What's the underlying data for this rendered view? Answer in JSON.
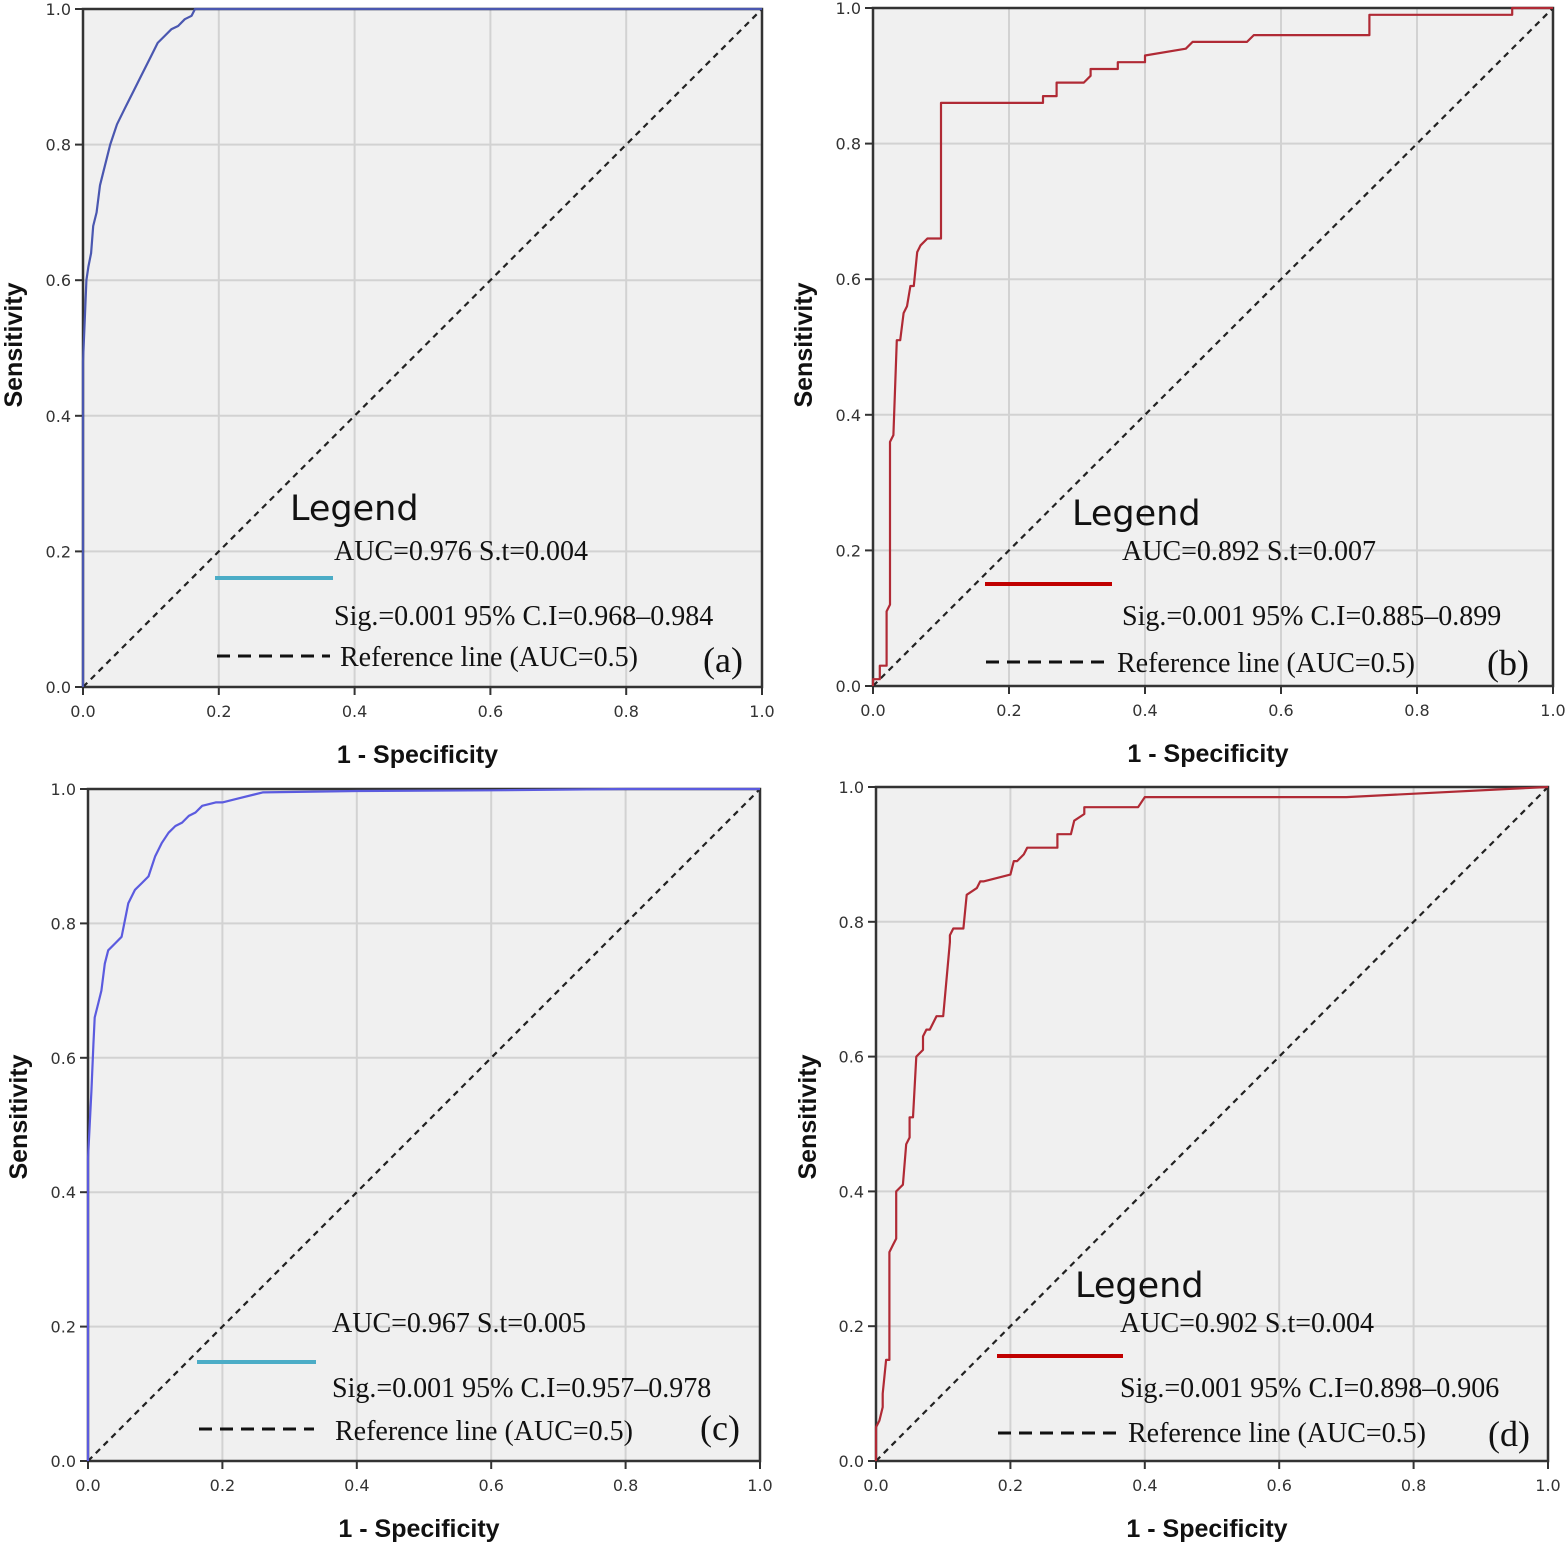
{
  "chart_data": [
    {
      "type": "line",
      "panel": "(a)",
      "xlabel": "1 - Specificity",
      "ylabel": "Sensitivity",
      "xlim": [
        0,
        1
      ],
      "ylim": [
        0,
        1
      ],
      "xticks": [
        "0.0",
        "0.2",
        "0.4",
        "0.6",
        "0.8",
        "1.0"
      ],
      "yticks": [
        "0.0",
        "0.2",
        "0.4",
        "0.6",
        "0.8",
        "1.0"
      ],
      "grid": true,
      "legend_title": "Legend",
      "legend_line_color": "#4bacc6",
      "curve_color": "#4a57b0",
      "stats_line1": "AUC=0.976 S.t=0.004",
      "stats_line2": "Sig.=0.001 95% C.I=0.968–0.984",
      "reference_label": "Reference line (AUC=0.5)",
      "series": [
        {
          "name": "ROC",
          "x": [
            0.0,
            0.0,
            0.003,
            0.005,
            0.008,
            0.012,
            0.015,
            0.02,
            0.025,
            0.03,
            0.035,
            0.04,
            0.05,
            0.06,
            0.065,
            0.075,
            0.085,
            0.095,
            0.1,
            0.11,
            0.12,
            0.13,
            0.14,
            0.15,
            0.16,
            0.165,
            0.2,
            1.0
          ],
          "y": [
            0.0,
            0.48,
            0.55,
            0.6,
            0.62,
            0.64,
            0.68,
            0.7,
            0.74,
            0.76,
            0.78,
            0.8,
            0.83,
            0.85,
            0.86,
            0.88,
            0.9,
            0.92,
            0.93,
            0.95,
            0.96,
            0.97,
            0.975,
            0.985,
            0.99,
            1.0,
            1.0,
            1.0
          ]
        },
        {
          "name": "Reference line",
          "x": [
            0,
            1
          ],
          "y": [
            0,
            1
          ]
        }
      ]
    },
    {
      "type": "line",
      "panel": "(b)",
      "xlabel": "1 - Specificity",
      "ylabel": "Sensitivity",
      "xlim": [
        0,
        1
      ],
      "ylim": [
        0,
        1
      ],
      "xticks": [
        "0.0",
        "0.2",
        "0.4",
        "0.6",
        "0.8",
        "1.0"
      ],
      "yticks": [
        "0.0",
        "0.2",
        "0.4",
        "0.6",
        "0.8",
        "1.0"
      ],
      "grid": true,
      "legend_title": "Legend",
      "legend_line_color": "#c00000",
      "curve_color": "#b02a35",
      "stats_line1": "AUC=0.892 S.t=0.007",
      "stats_line2": "Sig.=0.001 95% C.I=0.885–0.899",
      "reference_label": "Reference line (AUC=0.5)",
      "series": [
        {
          "name": "ROC",
          "x": [
            0.0,
            0.0,
            0.01,
            0.01,
            0.02,
            0.02,
            0.025,
            0.025,
            0.03,
            0.035,
            0.04,
            0.045,
            0.05,
            0.055,
            0.06,
            0.065,
            0.07,
            0.08,
            0.1,
            0.1,
            0.25,
            0.25,
            0.27,
            0.27,
            0.31,
            0.32,
            0.32,
            0.36,
            0.36,
            0.4,
            0.4,
            0.46,
            0.47,
            0.55,
            0.56,
            0.73,
            0.73,
            0.94,
            0.94,
            1.0
          ],
          "y": [
            0.0,
            0.01,
            0.01,
            0.03,
            0.03,
            0.11,
            0.12,
            0.36,
            0.37,
            0.51,
            0.51,
            0.55,
            0.56,
            0.59,
            0.59,
            0.64,
            0.65,
            0.66,
            0.66,
            0.86,
            0.86,
            0.87,
            0.87,
            0.89,
            0.89,
            0.9,
            0.91,
            0.91,
            0.92,
            0.92,
            0.93,
            0.94,
            0.95,
            0.95,
            0.96,
            0.96,
            0.99,
            0.99,
            1.0,
            1.0
          ]
        },
        {
          "name": "Reference line",
          "x": [
            0,
            1
          ],
          "y": [
            0,
            1
          ]
        }
      ]
    },
    {
      "type": "line",
      "panel": "(c)",
      "xlabel": "1 - Specificity",
      "ylabel": "Sensitivity",
      "xlim": [
        0,
        1
      ],
      "ylim": [
        0,
        1
      ],
      "xticks": [
        "0.0",
        "0.2",
        "0.4",
        "0.6",
        "0.8",
        "1.0"
      ],
      "yticks": [
        "0.0",
        "0.2",
        "0.4",
        "0.6",
        "0.8",
        "1.0"
      ],
      "grid": true,
      "legend_title": "",
      "legend_line_color": "#4bacc6",
      "curve_color": "#5b5bdf",
      "stats_line1": "AUC=0.967 S.t=0.005",
      "stats_line2": "Sig.=0.001 95% C.I=0.957–0.978",
      "reference_label": "Reference line (AUC=0.5)",
      "series": [
        {
          "name": "ROC",
          "x": [
            0.0,
            0.0,
            0.005,
            0.008,
            0.01,
            0.015,
            0.02,
            0.025,
            0.03,
            0.04,
            0.05,
            0.06,
            0.07,
            0.08,
            0.09,
            0.1,
            0.11,
            0.12,
            0.13,
            0.14,
            0.15,
            0.16,
            0.17,
            0.19,
            0.2,
            0.22,
            0.26,
            0.4,
            0.6,
            0.8,
            1.0
          ],
          "y": [
            0.0,
            0.45,
            0.55,
            0.62,
            0.66,
            0.68,
            0.7,
            0.74,
            0.76,
            0.77,
            0.78,
            0.83,
            0.85,
            0.86,
            0.87,
            0.9,
            0.92,
            0.935,
            0.945,
            0.95,
            0.96,
            0.965,
            0.975,
            0.98,
            0.98,
            0.985,
            0.995,
            0.997,
            0.998,
            1.0,
            1.0
          ]
        },
        {
          "name": "Reference line",
          "x": [
            0,
            1
          ],
          "y": [
            0,
            1
          ]
        }
      ]
    },
    {
      "type": "line",
      "panel": "(d)",
      "xlabel": "1 - Specificity",
      "ylabel": "Sensitivity",
      "xlim": [
        0,
        1
      ],
      "ylim": [
        0,
        1
      ],
      "xticks": [
        "0.0",
        "0.2",
        "0.4",
        "0.6",
        "0.8",
        "1.0"
      ],
      "yticks": [
        "0.0",
        "0.2",
        "0.4",
        "0.6",
        "0.8",
        "1.0"
      ],
      "grid": true,
      "legend_title": "Legend",
      "legend_line_color": "#c00000",
      "curve_color": "#b02a35",
      "stats_line1": "AUC=0.902 S.t=0.004",
      "stats_line2": "Sig.=0.001 95% C.I=0.898–0.906",
      "reference_label": "Reference line (AUC=0.5)",
      "series": [
        {
          "name": "ROC",
          "x": [
            0.0,
            0.0,
            0.005,
            0.01,
            0.01,
            0.015,
            0.02,
            0.02,
            0.025,
            0.03,
            0.03,
            0.04,
            0.045,
            0.05,
            0.05,
            0.055,
            0.06,
            0.07,
            0.07,
            0.075,
            0.08,
            0.09,
            0.1,
            0.11,
            0.11,
            0.115,
            0.13,
            0.135,
            0.135,
            0.15,
            0.155,
            0.16,
            0.2,
            0.205,
            0.21,
            0.22,
            0.225,
            0.27,
            0.27,
            0.29,
            0.295,
            0.31,
            0.31,
            0.39,
            0.4,
            0.7,
            1.0
          ],
          "y": [
            0.0,
            0.05,
            0.06,
            0.08,
            0.1,
            0.15,
            0.15,
            0.31,
            0.32,
            0.33,
            0.4,
            0.41,
            0.47,
            0.48,
            0.51,
            0.51,
            0.6,
            0.61,
            0.63,
            0.64,
            0.64,
            0.66,
            0.66,
            0.77,
            0.78,
            0.79,
            0.79,
            0.84,
            0.84,
            0.85,
            0.86,
            0.86,
            0.87,
            0.89,
            0.89,
            0.9,
            0.91,
            0.91,
            0.93,
            0.93,
            0.95,
            0.96,
            0.97,
            0.97,
            0.985,
            0.985,
            1.0
          ]
        },
        {
          "name": "Reference line",
          "x": [
            0,
            1
          ],
          "y": [
            0,
            1
          ]
        }
      ]
    }
  ]
}
